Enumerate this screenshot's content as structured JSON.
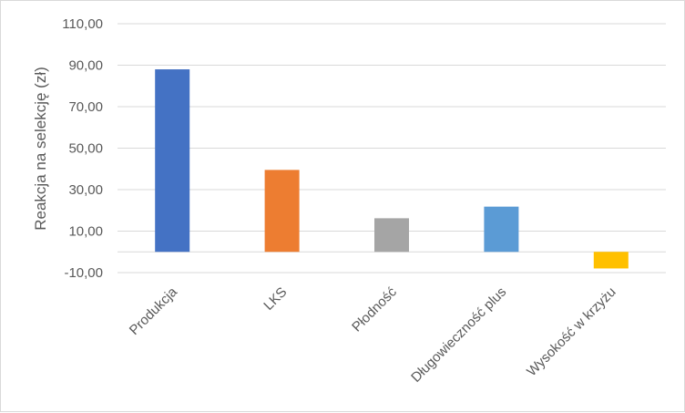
{
  "chart_data": {
    "type": "bar",
    "categories": [
      "Produkcja",
      "LKS",
      "Płodność",
      "Długowieczność plus",
      "Wysokość w krzyżu"
    ],
    "values": [
      88.0,
      39.5,
      16.2,
      21.8,
      -8.0
    ],
    "colors": [
      "#4472c4",
      "#ed7d31",
      "#a5a5a5",
      "#5b9bd5",
      "#ffc000"
    ],
    "ylabel": "Reakcja na selekcję (zł)",
    "ylim": [
      -10,
      110
    ],
    "yticks": [
      "-10,00",
      "10,00",
      "30,00",
      "50,00",
      "70,00",
      "90,00",
      "110,00"
    ],
    "ytick_values": [
      -10,
      10,
      30,
      50,
      70,
      90,
      110
    ],
    "grid": true,
    "legend": "none"
  }
}
